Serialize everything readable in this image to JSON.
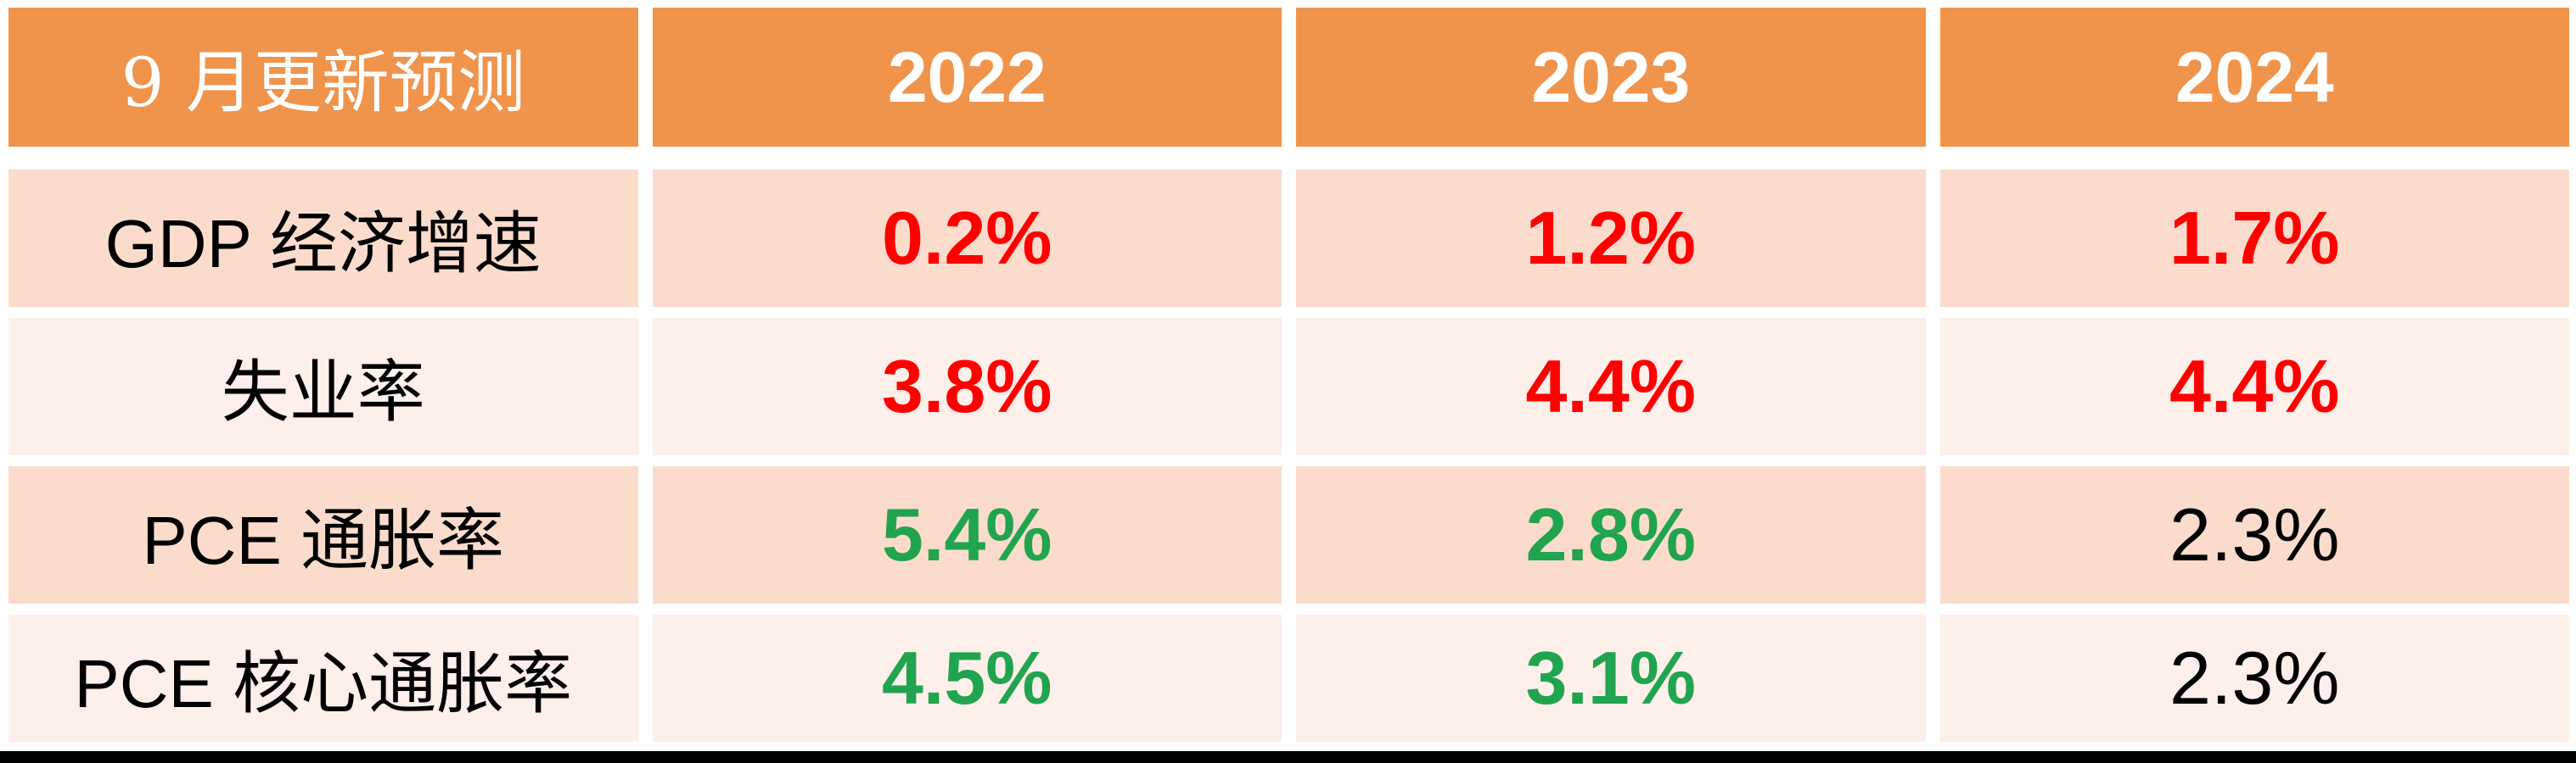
{
  "chart_data": {
    "type": "table",
    "title": "9 月更新预测",
    "categories": [
      "2022",
      "2023",
      "2024"
    ],
    "series": [
      {
        "name": "GDP 经济增速",
        "values": [
          "0.2%",
          "1.2%",
          "1.7%"
        ]
      },
      {
        "name": "失业率",
        "values": [
          "3.8%",
          "4.4%",
          "4.4%"
        ]
      },
      {
        "name": "PCE 通胀率",
        "values": [
          "5.4%",
          "2.8%",
          "2.3%"
        ]
      },
      {
        "name": "PCE 核心通胀率",
        "values": [
          "4.5%",
          "3.1%",
          "2.3%"
        ]
      }
    ],
    "value_colors": [
      [
        "red",
        "red",
        "red"
      ],
      [
        "red",
        "red",
        "red"
      ],
      [
        "green",
        "green",
        "black"
      ],
      [
        "green",
        "green",
        "black"
      ]
    ],
    "layout_hints": {
      "header_position": "top-row",
      "first_column_role": "metric-labels",
      "grid": "white-gaps-between-cells"
    }
  },
  "colors": {
    "header_orange": "#F0944C",
    "row_pink_dark": "#FBDCCC",
    "row_pink_light": "#FDEFE9",
    "value_red": "#FE0000",
    "value_green": "#21A44F",
    "value_black": "#000000",
    "header_text": "#FFFFFF",
    "bottom_bar_black": "#000000",
    "page_background": "#FFFFFF"
  }
}
